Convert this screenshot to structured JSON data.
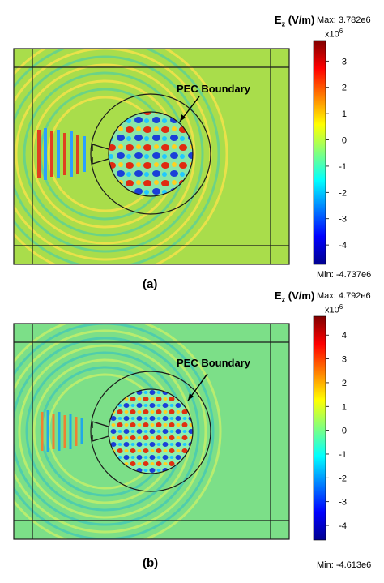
{
  "panels": [
    {
      "id": "a",
      "label": "(a)",
      "quantity": "E",
      "quantity_sub": "z",
      "unit": "(V/m)",
      "max_text": "Max: 3.782e6",
      "min_text": "Min: -4.737e6",
      "scale_base": "x10",
      "scale_exp": "6",
      "ticks": [
        "3",
        "2",
        "1",
        "0",
        "-1",
        "-2",
        "-3",
        "-4"
      ],
      "tick_values": [
        3,
        2,
        1,
        0,
        -1,
        -2,
        -3,
        -4
      ],
      "range": [
        -4.737,
        3.782
      ],
      "annotation": "PEC Boundary"
    },
    {
      "id": "b",
      "label": "(b)",
      "quantity": "E",
      "quantity_sub": "z",
      "unit": "(V/m)",
      "max_text": "Max: 4.792e6",
      "min_text": "Min: -4.613e6",
      "scale_base": "x10",
      "scale_exp": "6",
      "ticks": [
        "4",
        "3",
        "2",
        "1",
        "0",
        "-1",
        "-2",
        "-3",
        "-4"
      ],
      "tick_values": [
        4,
        3,
        2,
        1,
        0,
        -1,
        -2,
        -3,
        -4
      ],
      "range": [
        -4.613,
        4.792
      ],
      "annotation": "PEC Boundary"
    }
  ],
  "colors": {
    "jet_low": "#00008f",
    "jet_mid": "#7fff7f",
    "jet_high": "#800000",
    "background_a": "#a9dd4b",
    "background_b": "#7cdf88",
    "outline": "#1a1a1a"
  }
}
